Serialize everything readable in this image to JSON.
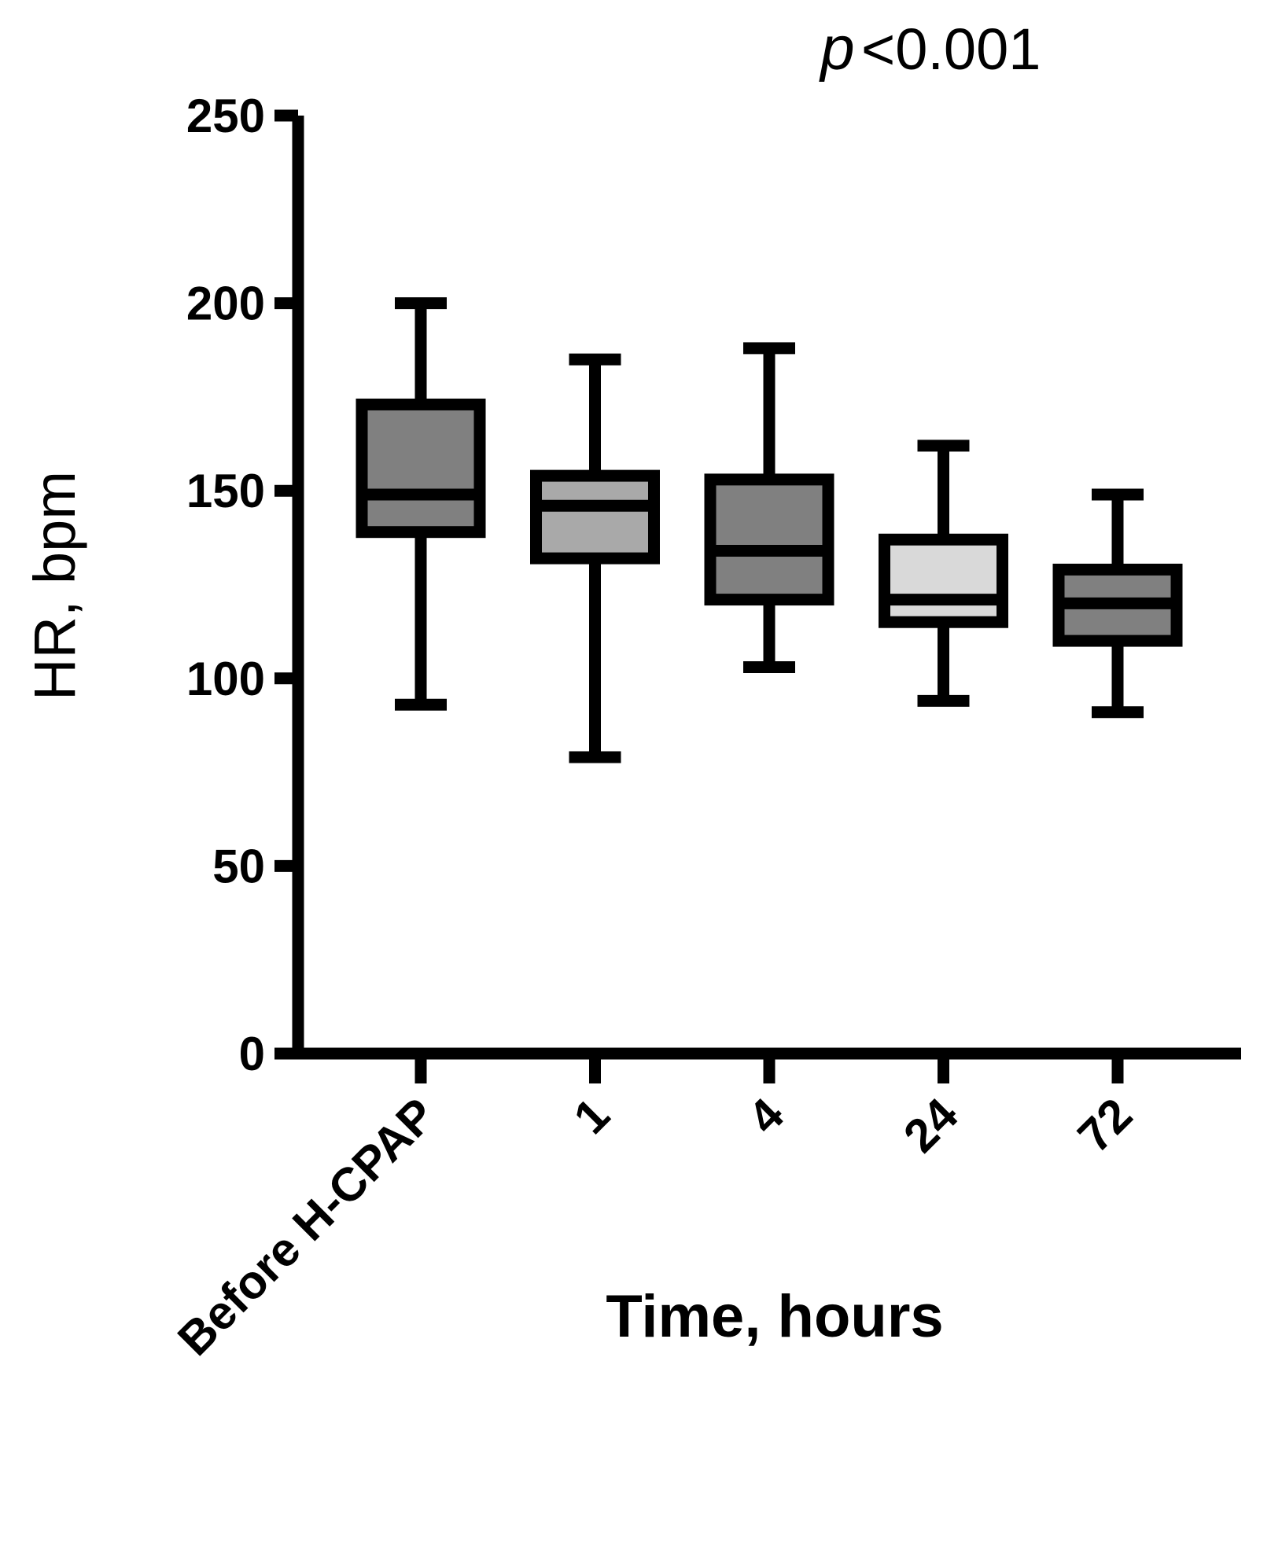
{
  "chart_data": {
    "type": "box",
    "annotation": [
      "p",
      "<0.001"
    ],
    "y_label": "HR, bpm",
    "x_label": "Time, hours",
    "categories": [
      "Before H-CPAP",
      "1",
      "4",
      "24",
      "72"
    ],
    "boxes": [
      {
        "min": 93,
        "q1": 139,
        "median": 149,
        "q3": 173,
        "max": 200
      },
      {
        "min": 79,
        "q1": 132,
        "median": 146,
        "q3": 154,
        "max": 185
      },
      {
        "min": 103,
        "q1": 121,
        "median": 134,
        "q3": 153,
        "max": 188
      },
      {
        "min": 94,
        "q1": 115,
        "median": 121,
        "q3": 137,
        "max": 162
      },
      {
        "min": 91,
        "q1": 110,
        "median": 120,
        "q3": 129,
        "max": 149
      }
    ],
    "colors": [
      "#808080",
      "#a9a9a9",
      "#808080",
      "#d9d9d9",
      "#808080"
    ],
    "ylim": [
      0,
      250
    ],
    "yticks": [
      0,
      50,
      100,
      150,
      200,
      250
    ]
  }
}
